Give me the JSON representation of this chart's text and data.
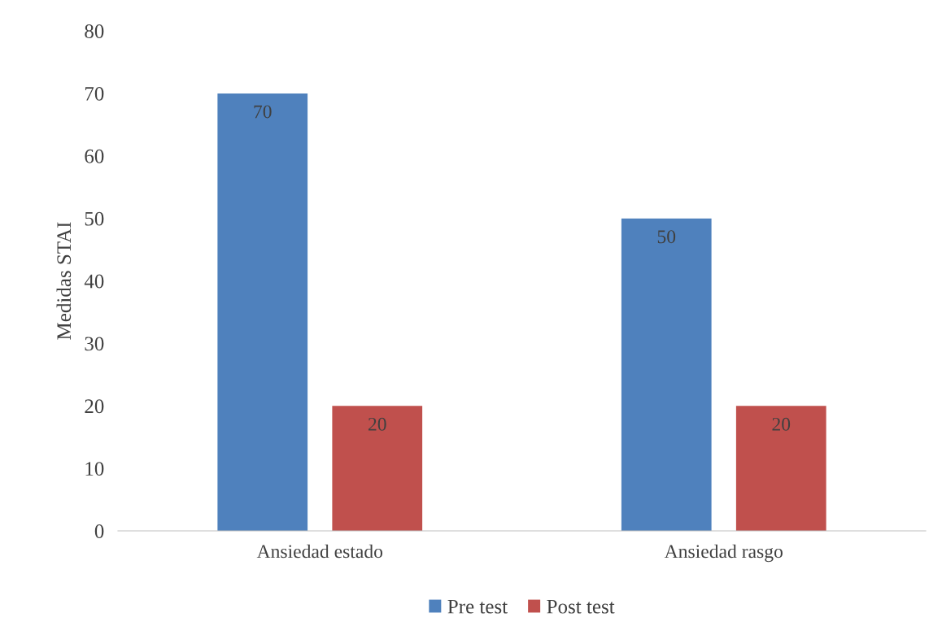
{
  "chart_data": {
    "type": "bar",
    "ylabel": "Medidas STAI",
    "categories": [
      "Ansiedad estado",
      "Ansiedad rasgo"
    ],
    "series": [
      {
        "name": "Pre test",
        "color": "#4f81bd",
        "values": [
          70,
          50
        ]
      },
      {
        "name": "Post test",
        "color": "#c0504d",
        "values": [
          20,
          20
        ]
      }
    ],
    "ylim": [
      0,
      80
    ],
    "yticks": [
      0,
      10,
      20,
      30,
      40,
      50,
      60,
      70,
      80
    ],
    "data_labels": true,
    "grid": false,
    "legend": "bottom"
  }
}
